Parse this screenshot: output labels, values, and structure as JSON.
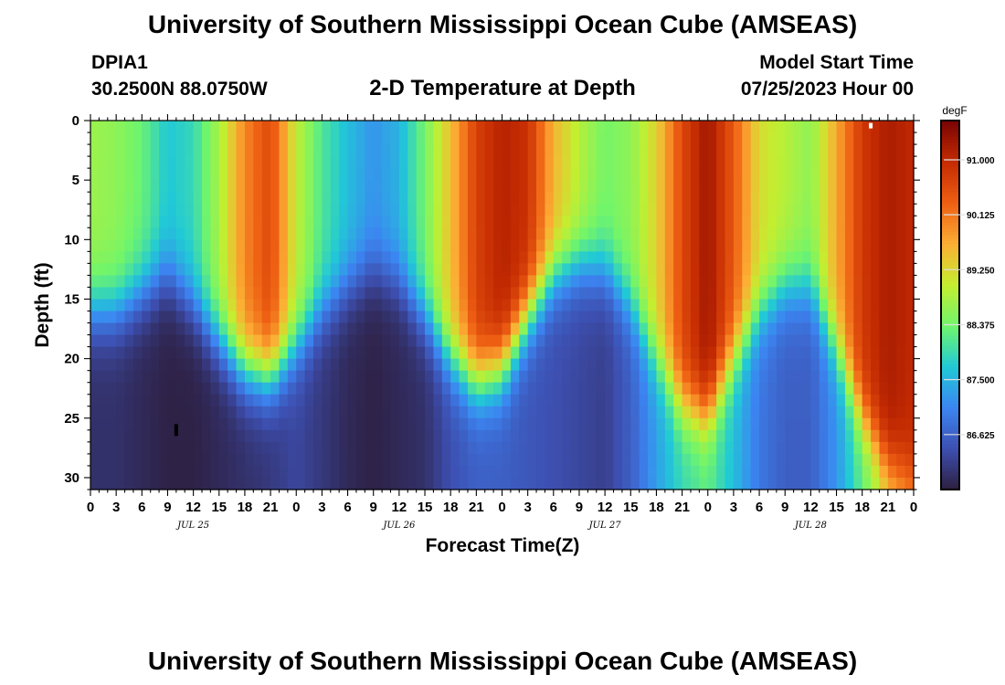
{
  "page": {
    "title": "University of Southern Mississippi Ocean Cube (AMSEAS)",
    "footer_title": "University of Southern Mississippi Ocean Cube (AMSEAS)",
    "station": {
      "id": "DPIA1",
      "coords": "30.2500N  88.0750W"
    },
    "subtitle": "2-D Temperature at Depth",
    "model_start": {
      "label": "Model Start Time",
      "value": "07/25/2023 Hour 00"
    }
  },
  "chart_data": {
    "type": "heatmap",
    "title": "2-D Temperature at Depth",
    "xlabel": "Forecast Time(Z)",
    "ylabel": "Depth (ft)",
    "x_range_hours": [
      0,
      96
    ],
    "x_tick_step_hours": 3,
    "x_tick_labels": [
      "0",
      "3",
      "6",
      "9",
      "12",
      "15",
      "18",
      "21",
      "0",
      "3",
      "6",
      "9",
      "12",
      "15",
      "18",
      "21",
      "0",
      "3",
      "6",
      "9",
      "12",
      "15",
      "18",
      "21",
      "0",
      "3",
      "6",
      "9",
      "12",
      "15",
      "18",
      "21",
      "0"
    ],
    "day_labels": [
      {
        "label": "JUL 25",
        "hour": 12
      },
      {
        "label": "JUL 26",
        "hour": 36
      },
      {
        "label": "JUL 27",
        "hour": 60
      },
      {
        "label": "JUL 28",
        "hour": 84
      }
    ],
    "y_range_ft": [
      0,
      31
    ],
    "y_ticks": [
      0,
      5,
      10,
      15,
      20,
      25,
      30
    ],
    "y_inverted": true,
    "grid": false,
    "colorbar": {
      "unit": "degF",
      "vmin": 85.75,
      "vmax": 91.625,
      "tick_values": [
        86.625,
        87.5,
        88.375,
        89.25,
        90.125,
        91.0
      ],
      "tick_labels": [
        "86.625",
        "87.500",
        "88.375",
        "89.250",
        "90.125",
        "91.000"
      ],
      "colors": [
        "#2d1e3e",
        "#3d4fb0",
        "#3c85f2",
        "#21c9d6",
        "#70f56c",
        "#c4ee30",
        "#fcae34",
        "#ee5f13",
        "#c42b02",
        "#7a0403"
      ]
    },
    "field_model": {
      "note": "temperature (degF) approximated per time as a surface value, a bottom value and a thermocline depth (ft)",
      "hours": [
        0,
        3,
        6,
        9,
        12,
        15,
        18,
        21,
        24,
        27,
        30,
        33,
        36,
        39,
        42,
        45,
        48,
        51,
        54,
        57,
        60,
        63,
        66,
        69,
        72,
        75,
        78,
        81,
        84,
        87,
        90,
        93,
        96
      ],
      "surface_degF": [
        88.7,
        88.6,
        88.3,
        87.7,
        87.9,
        88.8,
        90.0,
        90.6,
        89.0,
        88.1,
        87.6,
        87.2,
        87.5,
        88.4,
        89.5,
        90.7,
        91.1,
        90.9,
        89.6,
        88.9,
        88.4,
        88.6,
        89.3,
        90.6,
        91.3,
        90.4,
        89.2,
        88.9,
        88.6,
        89.7,
        90.8,
        91.2,
        91.0
      ],
      "bottom_degF": [
        86.0,
        86.0,
        85.9,
        85.8,
        85.8,
        85.9,
        86.0,
        86.1,
        86.3,
        86.1,
        85.9,
        85.8,
        85.9,
        86.0,
        86.4,
        86.6,
        86.6,
        86.5,
        86.4,
        86.3,
        86.2,
        86.6,
        87.3,
        87.9,
        88.2,
        87.6,
        86.9,
        86.6,
        86.6,
        87.2,
        88.2,
        89.2,
        89.8
      ],
      "thermocline_ft": [
        16.0,
        16.0,
        14.5,
        13.0,
        15.5,
        18.5,
        21.0,
        21.5,
        19.0,
        16.0,
        14.0,
        12.5,
        13.5,
        16.5,
        20.0,
        22.0,
        21.0,
        16.5,
        13.0,
        12.0,
        12.5,
        15.5,
        20.0,
        24.0,
        25.0,
        20.0,
        16.0,
        14.0,
        14.0,
        19.0,
        25.0,
        29.0,
        30.0
      ],
      "thermocline_width_ft": 3.5
    },
    "markers": [
      {
        "hour": 10,
        "depth_ft": 26,
        "value_degF": 85.75
      },
      {
        "hour": 91,
        "depth_ft": 0.2,
        "value_degF": 91.625
      }
    ]
  }
}
